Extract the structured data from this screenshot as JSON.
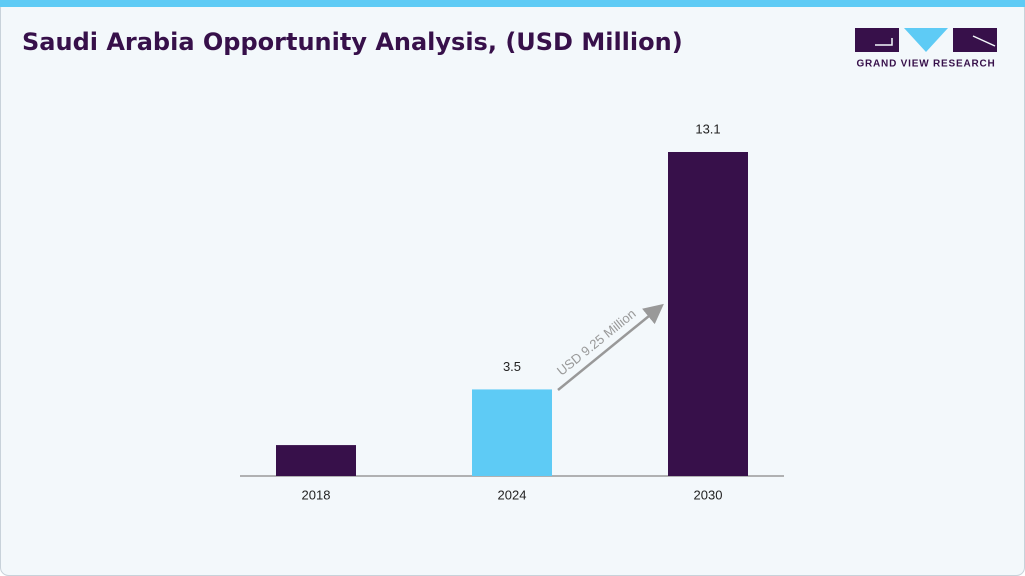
{
  "chart_data": {
    "type": "bar",
    "title": "Saudi Arabia Opportunity Analysis, (USD Million)",
    "categories": [
      "2018",
      "2024",
      "2030"
    ],
    "values": [
      1.25,
      3.5,
      13.1
    ],
    "colors": [
      "#37104a",
      "#5ecbf5",
      "#37104a"
    ],
    "show_value_labels": [
      false,
      true,
      true
    ],
    "annotation": "USD 9.25 Million",
    "brand": "GRAND VIEW RESEARCH"
  }
}
